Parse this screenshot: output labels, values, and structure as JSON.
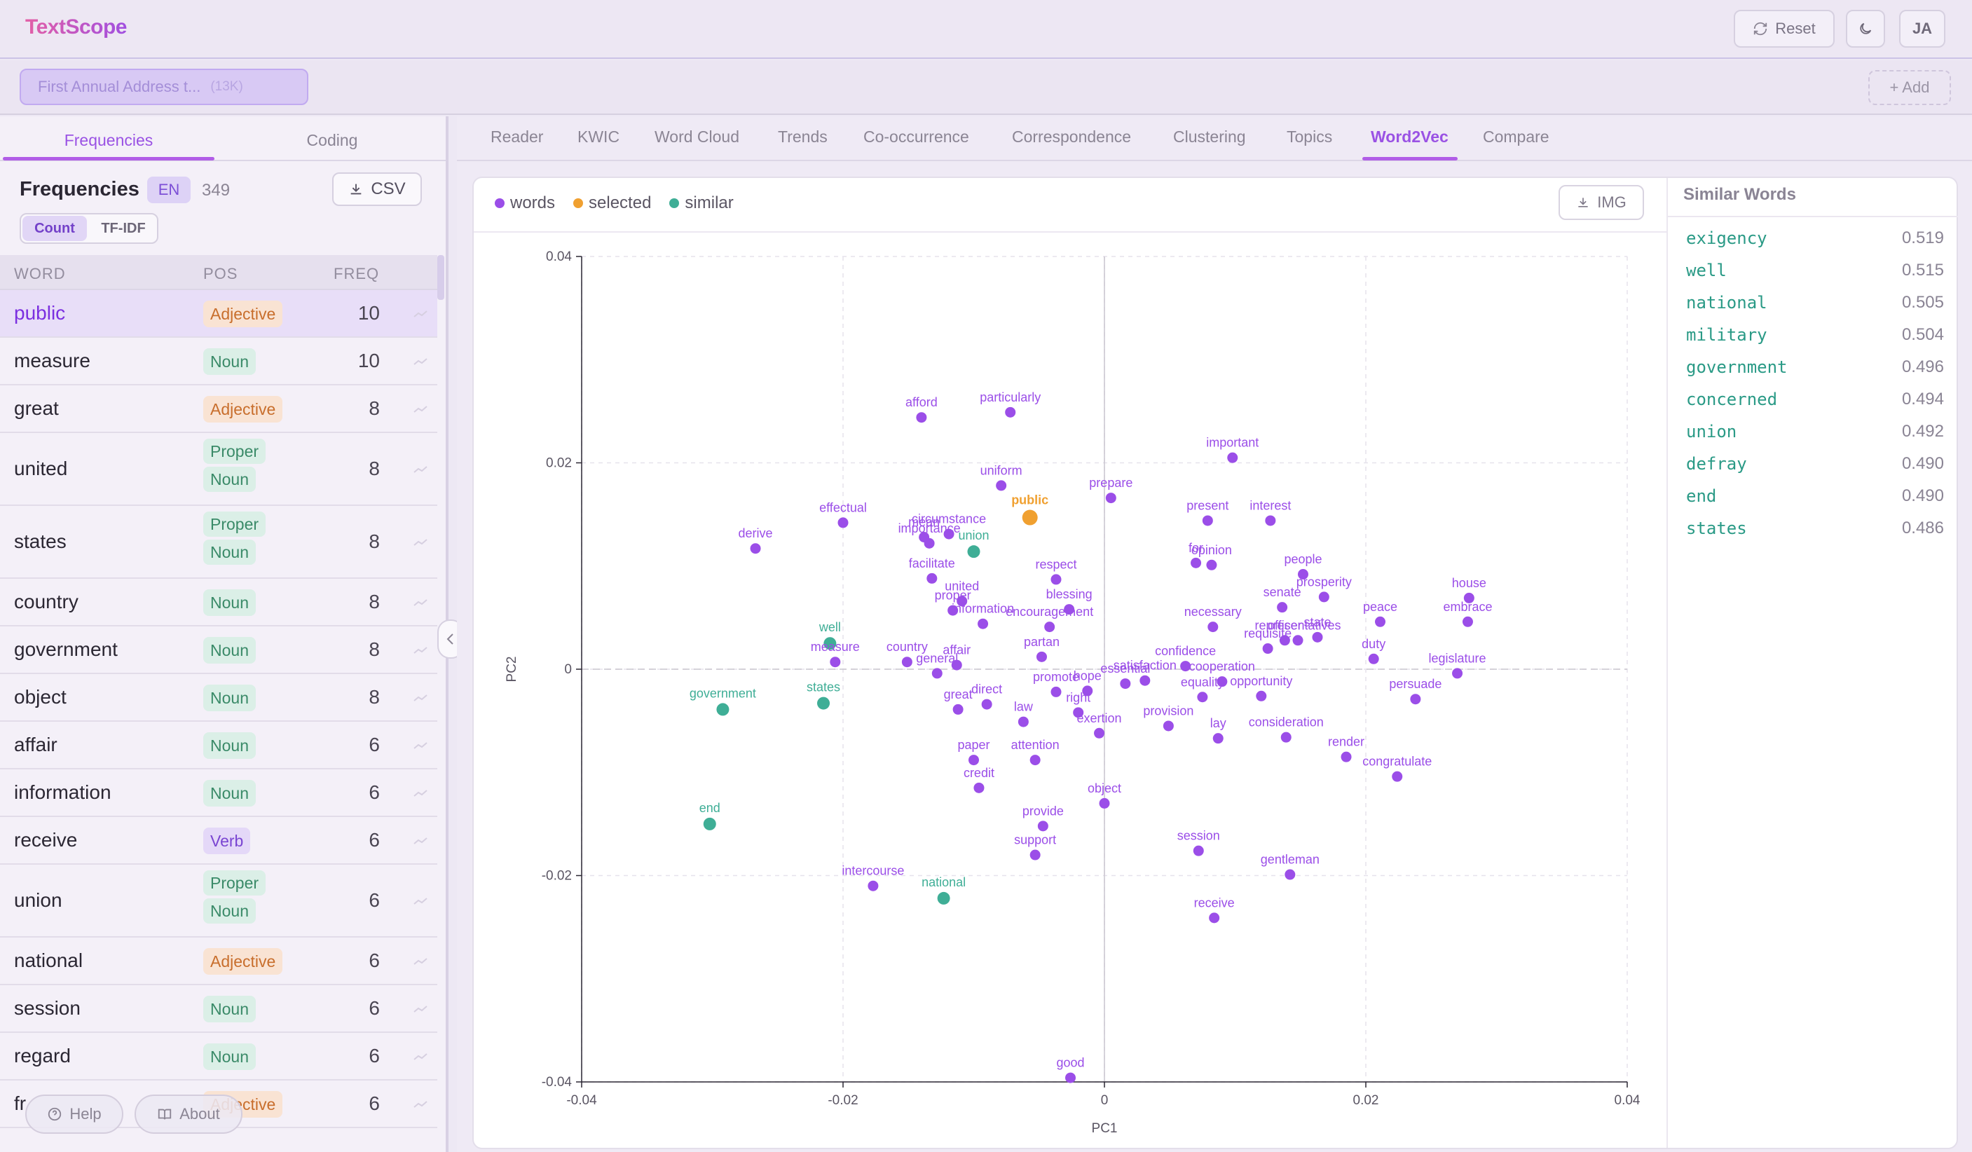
{
  "app": {
    "title": "TextScope",
    "reset_label": "Reset",
    "user_initials": "JA"
  },
  "document": {
    "name": "First Annual Address t...",
    "size": "(13K)",
    "add_label": "+ Add"
  },
  "left_tabs": [
    "Frequencies",
    "Coding"
  ],
  "frequencies": {
    "title": "Frequencies",
    "language": "EN",
    "count": "349",
    "csv_label": "CSV",
    "mode_count": "Count",
    "mode_tfidf": "TF-IDF",
    "columns": [
      "WORD",
      "POS",
      "FREQ"
    ],
    "rows": [
      {
        "word": "public",
        "pos": "Adjective",
        "freq": "10"
      },
      {
        "word": "measure",
        "pos": "Noun",
        "freq": "10"
      },
      {
        "word": "great",
        "pos": "Adjective",
        "freq": "8"
      },
      {
        "word": "united",
        "pos": "Proper Noun",
        "freq": "8"
      },
      {
        "word": "states",
        "pos": "Proper Noun",
        "freq": "8"
      },
      {
        "word": "country",
        "pos": "Noun",
        "freq": "8"
      },
      {
        "word": "government",
        "pos": "Noun",
        "freq": "8"
      },
      {
        "word": "object",
        "pos": "Noun",
        "freq": "8"
      },
      {
        "word": "affair",
        "pos": "Noun",
        "freq": "6"
      },
      {
        "word": "information",
        "pos": "Noun",
        "freq": "6"
      },
      {
        "word": "receive",
        "pos": "Verb",
        "freq": "6"
      },
      {
        "word": "union",
        "pos": "Proper Noun",
        "freq": "6"
      },
      {
        "word": "national",
        "pos": "Adjective",
        "freq": "6"
      },
      {
        "word": "session",
        "pos": "Noun",
        "freq": "6"
      },
      {
        "word": "regard",
        "pos": "Noun",
        "freq": "6"
      },
      {
        "word": "fr",
        "pos": "Adjective",
        "freq": "6"
      }
    ],
    "help_label": "Help",
    "about_label": "About"
  },
  "right_tabs": [
    "Reader",
    "KWIC",
    "Word Cloud",
    "Trends",
    "Co-occurrence",
    "Correspondence",
    "Clustering",
    "Topics",
    "Word2Vec",
    "Compare"
  ],
  "active_right_tab": "Word2Vec",
  "legend": {
    "words": "words",
    "selected": "selected",
    "similar": "similar"
  },
  "img_label": "IMG",
  "colors": {
    "words": "#9b4ee8",
    "selected": "#f0a030",
    "similar": "#3fae96",
    "accent": "#a14fe0"
  },
  "chart_data": {
    "type": "scatter",
    "xlabel": "PC1",
    "ylabel": "PC2",
    "xlim": [
      -0.04,
      0.04
    ],
    "ylim": [
      -0.04,
      0.04
    ],
    "xticks": [
      "-0.04",
      "-0.02",
      "0",
      "0.02",
      "0.04"
    ],
    "yticks": [
      "0.04",
      "0.02",
      "0",
      "-0.02",
      "-0.04"
    ],
    "grid": true,
    "selected_word": "public",
    "points": [
      {
        "w": "afford",
        "x": -0.014,
        "y": 0.0244,
        "g": "w"
      },
      {
        "w": "particularly",
        "x": -0.0072,
        "y": 0.0249,
        "g": "w"
      },
      {
        "w": "important",
        "x": 0.0098,
        "y": 0.0205,
        "g": "w"
      },
      {
        "w": "uniform",
        "x": -0.0079,
        "y": 0.0178,
        "g": "w"
      },
      {
        "w": "prepare",
        "x": 0.0005,
        "y": 0.0166,
        "g": "w"
      },
      {
        "w": "public",
        "x": -0.0057,
        "y": 0.0147,
        "g": "s"
      },
      {
        "w": "effectual",
        "x": -0.02,
        "y": 0.0142,
        "g": "w"
      },
      {
        "w": "circumstance",
        "x": -0.0119,
        "y": 0.0131,
        "g": "w"
      },
      {
        "w": "mean",
        "x": -0.0138,
        "y": 0.0128,
        "g": "w"
      },
      {
        "w": "importance",
        "x": -0.0134,
        "y": 0.0122,
        "g": "w"
      },
      {
        "w": "union",
        "x": -0.01,
        "y": 0.0114,
        "g": "m"
      },
      {
        "w": "present",
        "x": 0.0079,
        "y": 0.0144,
        "g": "w"
      },
      {
        "w": "interest",
        "x": 0.0127,
        "y": 0.0144,
        "g": "w"
      },
      {
        "w": "derive",
        "x": -0.0267,
        "y": 0.0117,
        "g": "w"
      },
      {
        "w": "facilitate",
        "x": -0.0132,
        "y": 0.0088,
        "g": "w"
      },
      {
        "w": "respect",
        "x": -0.0037,
        "y": 0.0087,
        "g": "w"
      },
      {
        "w": "for",
        "x": 0.007,
        "y": 0.0103,
        "g": "w"
      },
      {
        "w": "opinion",
        "x": 0.0082,
        "y": 0.0101,
        "g": "w"
      },
      {
        "w": "people",
        "x": 0.0152,
        "y": 0.0092,
        "g": "w"
      },
      {
        "w": "united",
        "x": -0.0109,
        "y": 0.0066,
        "g": "w"
      },
      {
        "w": "blessing",
        "x": -0.0027,
        "y": 0.0058,
        "g": "w"
      },
      {
        "w": "prosperity",
        "x": 0.0168,
        "y": 0.007,
        "g": "w"
      },
      {
        "w": "house",
        "x": 0.0279,
        "y": 0.0069,
        "g": "w"
      },
      {
        "w": "proper",
        "x": -0.0116,
        "y": 0.0057,
        "g": "w"
      },
      {
        "w": "information",
        "x": -0.0093,
        "y": 0.0044,
        "g": "w"
      },
      {
        "w": "encouragement",
        "x": -0.0042,
        "y": 0.0041,
        "g": "w"
      },
      {
        "w": "senate",
        "x": 0.0136,
        "y": 0.006,
        "g": "w"
      },
      {
        "w": "necessary",
        "x": 0.0083,
        "y": 0.0041,
        "g": "w"
      },
      {
        "w": "peace",
        "x": 0.0211,
        "y": 0.0046,
        "g": "w"
      },
      {
        "w": "embrace",
        "x": 0.0278,
        "y": 0.0046,
        "g": "w"
      },
      {
        "w": "well",
        "x": -0.021,
        "y": 0.0025,
        "g": "m"
      },
      {
        "w": "measure",
        "x": -0.0206,
        "y": 0.0007,
        "g": "w"
      },
      {
        "w": "country",
        "x": -0.0151,
        "y": 0.0007,
        "g": "w"
      },
      {
        "w": "general",
        "x": -0.0128,
        "y": -0.0004,
        "g": "w"
      },
      {
        "w": "affair",
        "x": -0.0113,
        "y": 0.0004,
        "g": "w"
      },
      {
        "w": "partan",
        "x": -0.0048,
        "y": 0.0012,
        "g": "w"
      },
      {
        "w": "officer",
        "x": 0.0138,
        "y": 0.0028,
        "g": "w"
      },
      {
        "w": "representatives",
        "x": 0.0148,
        "y": 0.0028,
        "g": "w"
      },
      {
        "w": "state",
        "x": 0.0163,
        "y": 0.0031,
        "g": "w"
      },
      {
        "w": "requisite",
        "x": 0.0125,
        "y": 0.002,
        "g": "w"
      },
      {
        "w": "duty",
        "x": 0.0206,
        "y": 0.001,
        "g": "w"
      },
      {
        "w": "legislature",
        "x": 0.027,
        "y": -0.0004,
        "g": "w"
      },
      {
        "w": "confidence",
        "x": 0.0062,
        "y": 0.0003,
        "g": "w"
      },
      {
        "w": "satisfaction",
        "x": 0.0031,
        "y": -0.0011,
        "g": "w"
      },
      {
        "w": "essential",
        "x": 0.0016,
        "y": -0.0014,
        "g": "w"
      },
      {
        "w": "cooperation",
        "x": 0.009,
        "y": -0.0012,
        "g": "w"
      },
      {
        "w": "equality",
        "x": 0.0075,
        "y": -0.0027,
        "g": "w"
      },
      {
        "w": "opportunity",
        "x": 0.012,
        "y": -0.0026,
        "g": "w"
      },
      {
        "w": "hope",
        "x": -0.0013,
        "y": -0.0021,
        "g": "w"
      },
      {
        "w": "promote",
        "x": -0.0037,
        "y": -0.0022,
        "g": "w"
      },
      {
        "w": "right",
        "x": -0.002,
        "y": -0.0042,
        "g": "w"
      },
      {
        "w": "persuade",
        "x": 0.0238,
        "y": -0.0029,
        "g": "w"
      },
      {
        "w": "government",
        "x": -0.0292,
        "y": -0.0039,
        "g": "m"
      },
      {
        "w": "states",
        "x": -0.0215,
        "y": -0.0033,
        "g": "m"
      },
      {
        "w": "great",
        "x": -0.0112,
        "y": -0.0039,
        "g": "w"
      },
      {
        "w": "direct",
        "x": -0.009,
        "y": -0.0034,
        "g": "w"
      },
      {
        "w": "law",
        "x": -0.0062,
        "y": -0.0051,
        "g": "w"
      },
      {
        "w": "exertion",
        "x": -0.0004,
        "y": -0.0062,
        "g": "w"
      },
      {
        "w": "provision",
        "x": 0.0049,
        "y": -0.0055,
        "g": "w"
      },
      {
        "w": "lay",
        "x": 0.0087,
        "y": -0.0067,
        "g": "w"
      },
      {
        "w": "consideration",
        "x": 0.0139,
        "y": -0.0066,
        "g": "w"
      },
      {
        "w": "render",
        "x": 0.0185,
        "y": -0.0085,
        "g": "w"
      },
      {
        "w": "congratulate",
        "x": 0.0224,
        "y": -0.0104,
        "g": "w"
      },
      {
        "w": "paper",
        "x": -0.01,
        "y": -0.0088,
        "g": "w"
      },
      {
        "w": "attention",
        "x": -0.0053,
        "y": -0.0088,
        "g": "w"
      },
      {
        "w": "credit",
        "x": -0.0096,
        "y": -0.0115,
        "g": "w"
      },
      {
        "w": "object",
        "x": 0.0,
        "y": -0.013,
        "g": "w"
      },
      {
        "w": "provide",
        "x": -0.0047,
        "y": -0.0152,
        "g": "w"
      },
      {
        "w": "support",
        "x": -0.0053,
        "y": -0.018,
        "g": "w"
      },
      {
        "w": "session",
        "x": 0.0072,
        "y": -0.0176,
        "g": "w"
      },
      {
        "w": "gentleman",
        "x": 0.0142,
        "y": -0.0199,
        "g": "w"
      },
      {
        "w": "end",
        "x": -0.0302,
        "y": -0.015,
        "g": "m"
      },
      {
        "w": "intercourse",
        "x": -0.0177,
        "y": -0.021,
        "g": "w"
      },
      {
        "w": "national",
        "x": -0.0123,
        "y": -0.0222,
        "g": "m"
      },
      {
        "w": "receive",
        "x": 0.0084,
        "y": -0.0241,
        "g": "w"
      },
      {
        "w": "good",
        "x": -0.0026,
        "y": -0.0396,
        "g": "w"
      }
    ]
  },
  "similar": {
    "title": "Similar Words",
    "items": [
      {
        "word": "exigency",
        "score": "0.519"
      },
      {
        "word": "well",
        "score": "0.515"
      },
      {
        "word": "national",
        "score": "0.505"
      },
      {
        "word": "military",
        "score": "0.504"
      },
      {
        "word": "government",
        "score": "0.496"
      },
      {
        "word": "concerned",
        "score": "0.494"
      },
      {
        "word": "union",
        "score": "0.492"
      },
      {
        "word": "defray",
        "score": "0.490"
      },
      {
        "word": "end",
        "score": "0.490"
      },
      {
        "word": "states",
        "score": "0.486"
      }
    ]
  }
}
